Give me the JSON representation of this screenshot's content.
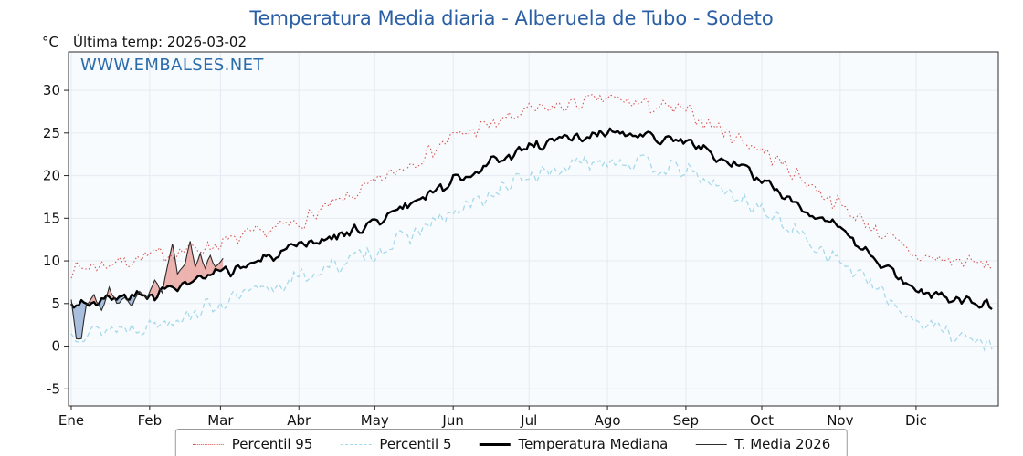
{
  "colors": {
    "title_blue": "#2a5fa5",
    "watermark_blue": "#2b6cab",
    "plot_bg": "#f8fbfd",
    "grid": "#e4ebf2",
    "frame": "#2b2b2b"
  },
  "chart_data": {
    "type": "line",
    "title": "Temperatura Media diaria - Alberuela de Tubo - Sodeto",
    "unit_label": "°C",
    "subtitle": "Última temp: 2026-03-02",
    "watermark": "WWW.EMBALSES.NET",
    "x_tick_labels": [
      "Ene",
      "Feb",
      "Mar",
      "Abr",
      "May",
      "Jun",
      "Jul",
      "Ago",
      "Sep",
      "Oct",
      "Nov",
      "Dic"
    ],
    "month_start_days": [
      0,
      31,
      59,
      90,
      120,
      151,
      181,
      212,
      243,
      273,
      304,
      334
    ],
    "y_ticks": [
      -5,
      0,
      5,
      10,
      15,
      20,
      25,
      30
    ],
    "ylim": [
      -7,
      34.5
    ],
    "days_in_year": 365,
    "anchor_days": [
      0,
      31,
      59,
      90,
      120,
      151,
      181,
      212,
      243,
      273,
      304,
      334,
      364
    ],
    "series": [
      {
        "name": "Percentil 95",
        "color": "#d85450",
        "style": "dotted",
        "width": 1.1,
        "amp": 1.1,
        "seed": 7,
        "anchors": [
          9,
          10.5,
          12,
          14.5,
          19,
          24.5,
          27.5,
          29,
          27.5,
          23,
          16.5,
          10.5,
          9.5
        ]
      },
      {
        "name": "Percentil 5",
        "color": "#a6d9ea",
        "style": "dashed",
        "width": 1.3,
        "amp": 1.2,
        "seed": 13,
        "anchors": [
          1.5,
          2.5,
          5,
          8,
          11,
          15.5,
          20,
          22,
          20.5,
          16,
          10,
          3,
          0
        ]
      },
      {
        "name": "Temperatura Mediana",
        "color": "#000000",
        "style": "solid",
        "width": 2.4,
        "amp": 0.8,
        "seed": 3,
        "anchors": [
          5,
          6,
          8.5,
          11.5,
          14.5,
          19.5,
          23.5,
          25,
          24,
          19.5,
          13.5,
          6.5,
          5
        ]
      }
    ],
    "current_year": {
      "name": "T. Media 2026",
      "color": "#2b2b2b",
      "width": 1.1,
      "amp": 0.35,
      "seed": 21,
      "points": [
        [
          0,
          5.5
        ],
        [
          2,
          1.0
        ],
        [
          4,
          0.8
        ],
        [
          6,
          4.8
        ],
        [
          9,
          6.0
        ],
        [
          12,
          4.2
        ],
        [
          15,
          6.8
        ],
        [
          18,
          5.0
        ],
        [
          21,
          5.8
        ],
        [
          24,
          4.8
        ],
        [
          27,
          6.2
        ],
        [
          30,
          5.8
        ],
        [
          33,
          7.8
        ],
        [
          36,
          6.2
        ],
        [
          38,
          9.2
        ],
        [
          40,
          12.0
        ],
        [
          42,
          8.2
        ],
        [
          45,
          9.8
        ],
        [
          47,
          12.6
        ],
        [
          49,
          9.2
        ],
        [
          51,
          10.8
        ],
        [
          53,
          9.2
        ],
        [
          55,
          10.6
        ],
        [
          57,
          9.6
        ],
        [
          60,
          10.2
        ]
      ],
      "fill_above": "#e26a60",
      "fill_below": "#5a82be",
      "fill_alpha": 0.5
    },
    "legend_position": "bottom-center"
  }
}
